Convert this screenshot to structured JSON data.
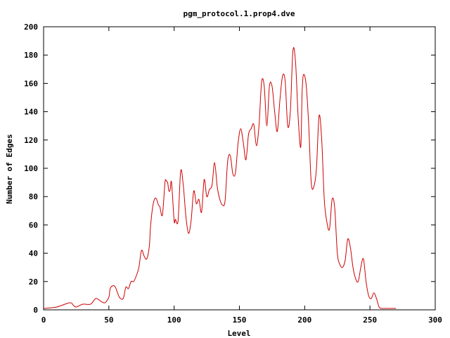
{
  "chart_data": {
    "type": "line",
    "title": "pgm_protocol.1.prop4.dve",
    "xlabel": "Level",
    "ylabel": "Number of Edges",
    "xlim": [
      0,
      300
    ],
    "ylim": [
      0,
      200
    ],
    "xticks": [
      0,
      50,
      100,
      150,
      200,
      250,
      300
    ],
    "yticks": [
      0,
      20,
      40,
      60,
      80,
      100,
      120,
      140,
      160,
      180,
      200
    ],
    "grid": false,
    "legend": "none",
    "line_color": "#cc0000",
    "series": [
      {
        "x": [
          0,
          10,
          20,
          23,
          25,
          30,
          36,
          40,
          44,
          47,
          50,
          51,
          53,
          55,
          58,
          61,
          63,
          65,
          67,
          69,
          71,
          73,
          75,
          77,
          79,
          81,
          82,
          84,
          86,
          88,
          89,
          91,
          93,
          94,
          95,
          96,
          97,
          98,
          100,
          101,
          103,
          105,
          107,
          109,
          111,
          113,
          115,
          117,
          119,
          121,
          123,
          125,
          127,
          129,
          131,
          133,
          135,
          137,
          139,
          141,
          143,
          145,
          147,
          149,
          151,
          153,
          155,
          157,
          159,
          161,
          163,
          165,
          167,
          169,
          171,
          173,
          175,
          177,
          179,
          181,
          183,
          185,
          187,
          189,
          191,
          193,
          195,
          197,
          198,
          199,
          201,
          203,
          205,
          207,
          209,
          211,
          213,
          215,
          217,
          219,
          221,
          223,
          225,
          227,
          229,
          231,
          233,
          235,
          237,
          239,
          241,
          243,
          245,
          247,
          249,
          251,
          253,
          255,
          257,
          259,
          261,
          263,
          265,
          267,
          270
        ],
        "y": [
          1,
          2,
          5,
          3,
          2,
          4,
          4,
          8,
          6,
          5,
          9,
          15,
          17,
          16,
          9,
          8,
          16,
          15,
          20,
          20,
          24,
          30,
          42,
          38,
          36,
          45,
          60,
          75,
          79,
          74,
          73,
          67,
          90,
          91,
          90,
          84,
          85,
          90,
          63,
          64,
          63,
          98,
          88,
          66,
          54,
          63,
          84,
          75,
          78,
          69,
          92,
          80,
          85,
          88,
          104,
          87,
          78,
          74,
          77,
          105,
          109,
          96,
          97,
          118,
          128,
          118,
          106,
          124,
          128,
          131,
          116,
          130,
          161,
          158,
          130,
          158,
          158,
          140,
          126,
          148,
          165,
          162,
          130,
          140,
          183,
          175,
          136,
          115,
          153,
          166,
          160,
          132,
          90,
          87,
          100,
          137,
          121,
          78,
          62,
          57,
          78,
          72,
          40,
          32,
          30,
          35,
          50,
          44,
          30,
          22,
          20,
          30,
          36,
          20,
          10,
          8,
          12,
          8,
          2,
          1,
          1,
          1,
          1,
          1,
          1
        ]
      }
    ]
  }
}
